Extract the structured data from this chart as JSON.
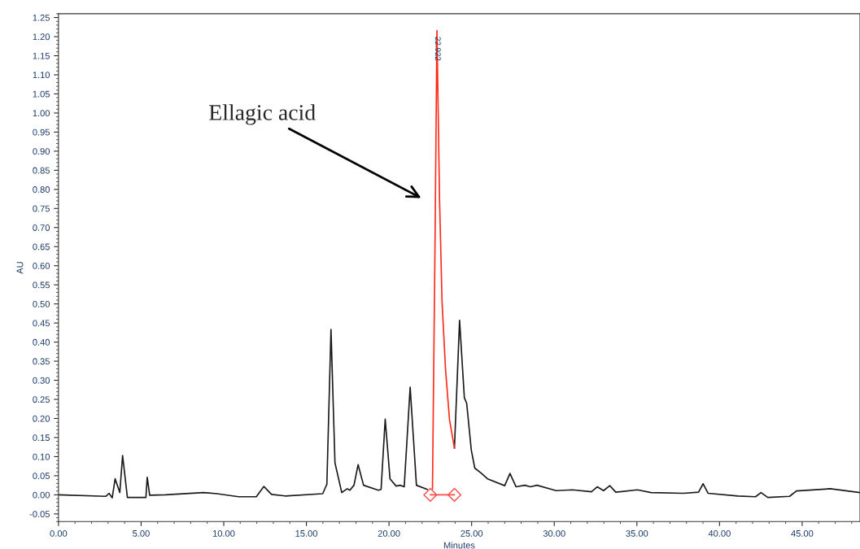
{
  "chart_data": {
    "type": "line",
    "xlabel": "Minutes",
    "ylabel": "AU",
    "xlim": [
      0,
      48.5
    ],
    "ylim": [
      -0.07,
      1.26
    ],
    "xticks": [
      {
        "value": 0,
        "label": "0.00"
      },
      {
        "value": 5,
        "label": "5.00"
      },
      {
        "value": 10,
        "label": "10.00"
      },
      {
        "value": 15,
        "label": "15.00"
      },
      {
        "value": 20,
        "label": "20.00"
      },
      {
        "value": 25,
        "label": "25.00"
      },
      {
        "value": 30,
        "label": "30.00"
      },
      {
        "value": 35,
        "label": "35.00"
      },
      {
        "value": 40,
        "label": "40.00"
      },
      {
        "value": 45,
        "label": "45.00"
      }
    ],
    "yticks": [
      {
        "value": -0.05,
        "label": "-0.05"
      },
      {
        "value": 0,
        "label": "0.00"
      },
      {
        "value": 0.05,
        "label": "0.05"
      },
      {
        "value": 0.1,
        "label": "0.10"
      },
      {
        "value": 0.15,
        "label": "0.15"
      },
      {
        "value": 0.2,
        "label": "0.20"
      },
      {
        "value": 0.25,
        "label": "0.25"
      },
      {
        "value": 0.3,
        "label": "0.30"
      },
      {
        "value": 0.35,
        "label": "0.35"
      },
      {
        "value": 0.4,
        "label": "0.40"
      },
      {
        "value": 0.45,
        "label": "0.45"
      },
      {
        "value": 0.5,
        "label": "0.50"
      },
      {
        "value": 0.55,
        "label": "0.55"
      },
      {
        "value": 0.6,
        "label": "0.60"
      },
      {
        "value": 0.65,
        "label": "0.65"
      },
      {
        "value": 0.7,
        "label": "0.70"
      },
      {
        "value": 0.75,
        "label": "0.75"
      },
      {
        "value": 0.8,
        "label": "0.80"
      },
      {
        "value": 0.85,
        "label": "0.85"
      },
      {
        "value": 0.9,
        "label": "0.90"
      },
      {
        "value": 0.95,
        "label": "0.95"
      },
      {
        "value": 1.0,
        "label": "1.00"
      },
      {
        "value": 1.05,
        "label": "1.05"
      },
      {
        "value": 1.1,
        "label": "1.10"
      },
      {
        "value": 1.15,
        "label": "1.15"
      },
      {
        "value": 1.2,
        "label": "1.20"
      },
      {
        "value": 1.25,
        "label": "1.25"
      }
    ],
    "grid": false,
    "marker": "none",
    "line_style": "solid",
    "series": [
      {
        "color": "#1a1a1a",
        "x": [
          0,
          2.86,
          3.06,
          3.25,
          3.43,
          3.71,
          3.88,
          4.17,
          5.29,
          5.37,
          5.52,
          6.47,
          8.77,
          9.59,
          10.9,
          11.97,
          12.43,
          12.89,
          13.71,
          15.99,
          16.24,
          16.49,
          16.73,
          17.14,
          17.47,
          17.63,
          17.88,
          18.13,
          18.46,
          19.36,
          19.52,
          19.77,
          20.06,
          20.43,
          20.67,
          20.92,
          21.28,
          21.66,
          22.32
        ],
        "values": [
          0.0,
          -0.004,
          0.004,
          -0.008,
          0.042,
          0.006,
          0.103,
          -0.007,
          -0.007,
          0.046,
          -0.001,
          0.0,
          0.006,
          0.003,
          -0.005,
          -0.005,
          0.022,
          0.001,
          -0.003,
          0.003,
          0.028,
          0.433,
          0.084,
          0.006,
          0.016,
          0.012,
          0.025,
          0.079,
          0.025,
          0.012,
          0.014,
          0.198,
          0.042,
          0.023,
          0.025,
          0.021,
          0.282,
          0.025,
          0.014
        ]
      },
      {
        "color": "#1a1a1a",
        "x": [
          23.96,
          24.27,
          24.56,
          24.7,
          24.98,
          25.19,
          25.6,
          25.96,
          27.0,
          27.32,
          27.69,
          28.22,
          28.55,
          28.96,
          30.11,
          31.1,
          32.25,
          32.6,
          32.98,
          33.36,
          33.72,
          35.03,
          35.86,
          37.83,
          38.73,
          39.01,
          39.31,
          41.12,
          42.18,
          42.51,
          42.92,
          44.24,
          44.65,
          46.7,
          48.5
        ],
        "values": [
          0.122,
          0.457,
          0.254,
          0.24,
          0.117,
          0.07,
          0.056,
          0.042,
          0.024,
          0.056,
          0.021,
          0.025,
          0.021,
          0.025,
          0.011,
          0.013,
          0.008,
          0.021,
          0.011,
          0.024,
          0.007,
          0.013,
          0.006,
          0.004,
          0.007,
          0.029,
          0.004,
          -0.003,
          -0.005,
          0.006,
          -0.007,
          -0.004,
          0.01,
          0.016,
          0.006
        ]
      },
      {
        "color": "#ff2a1a",
        "x": [
          22.63,
          22.79,
          22.9,
          23.06,
          23.21,
          23.42,
          23.66,
          23.96
        ],
        "values": [
          0.015,
          0.682,
          1.216,
          0.77,
          0.506,
          0.329,
          0.197,
          0.122
        ]
      },
      {
        "color": "#ff4a4a",
        "marker": "diamond",
        "x": [
          22.5,
          23.96
        ],
        "values": [
          0.0,
          0.0
        ]
      }
    ],
    "annotations": [
      "Ellagic acid",
      {
        "text": "22.922",
        "x": 22.92,
        "y": 1.2
      }
    ]
  }
}
